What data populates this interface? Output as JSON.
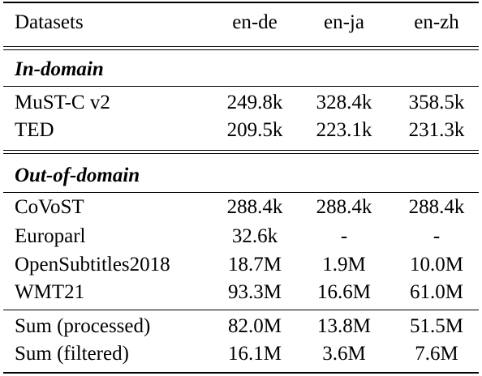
{
  "table": {
    "header": [
      "Datasets",
      "en-de",
      "en-ja",
      "en-zh"
    ],
    "sections": [
      {
        "title": "In-domain",
        "rows": [
          [
            "MuST-C v2",
            "249.8k",
            "328.4k",
            "358.5k"
          ],
          [
            "TED",
            "209.5k",
            "223.1k",
            "231.3k"
          ]
        ]
      },
      {
        "title": "Out-of-domain",
        "rows": [
          [
            "CoVoST",
            "288.4k",
            "288.4k",
            "288.4k"
          ],
          [
            "Europarl",
            "32.6k",
            "-",
            "-"
          ],
          [
            "OpenSubtitles2018",
            "18.7M",
            "1.9M",
            "10.0M"
          ],
          [
            "WMT21",
            "93.3M",
            "16.6M",
            "61.0M"
          ]
        ]
      }
    ],
    "summary_rows": [
      [
        "Sum (processed)",
        "82.0M",
        "13.8M",
        "51.5M"
      ],
      [
        "Sum (filtered)",
        "16.1M",
        "3.6M",
        "7.6M"
      ]
    ]
  }
}
